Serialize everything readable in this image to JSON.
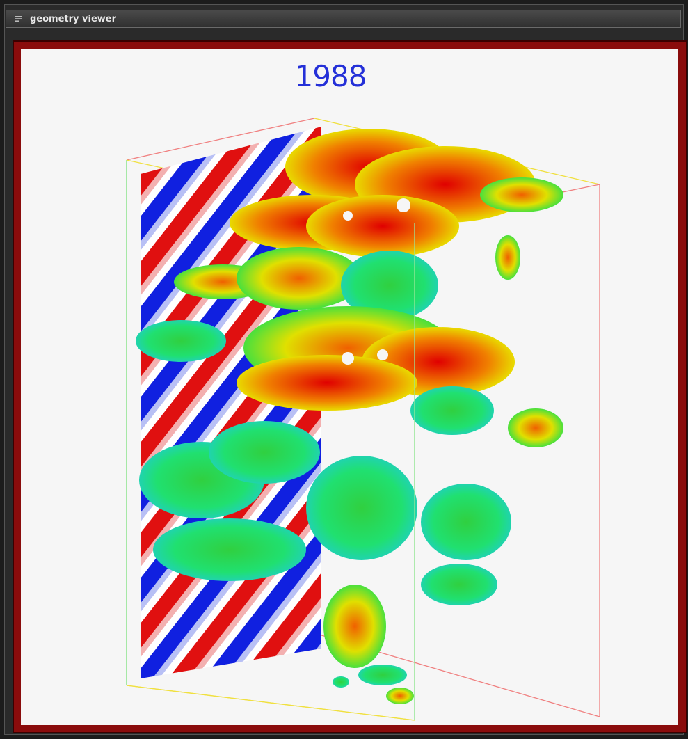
{
  "window": {
    "title": "geometry viewer",
    "menu_icon": "window-menu-icon"
  },
  "viewer": {
    "label": "1988",
    "colors": {
      "frame": "#8a0c0c",
      "label": "#2430d8",
      "seismic_positive": "#e01010",
      "seismic_negative": "#1020e0",
      "box_edge_green": "#7ae07a",
      "box_edge_yellow": "#f0e040",
      "box_edge_red": "#e05050"
    }
  }
}
